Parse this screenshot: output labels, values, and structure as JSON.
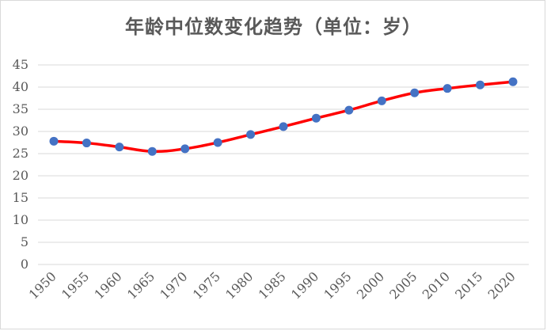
{
  "chart_data": {
    "type": "line",
    "title": "年龄中位数变化趋势（单位：岁）",
    "xlabel": "",
    "ylabel": "",
    "categories": [
      "1950",
      "1955",
      "1960",
      "1965",
      "1970",
      "1975",
      "1980",
      "1985",
      "1990",
      "1995",
      "2000",
      "2005",
      "2010",
      "2015",
      "2020"
    ],
    "series": [
      {
        "values": [
          27.8,
          27.4,
          26.5,
          25.5,
          26.1,
          27.5,
          29.3,
          31.1,
          33.0,
          34.8,
          36.9,
          38.7,
          39.7,
          40.5,
          41.2
        ]
      }
    ],
    "ylim": [
      0,
      45
    ],
    "yticks": [
      0,
      5,
      10,
      15,
      20,
      25,
      30,
      35,
      40,
      45
    ],
    "grid": true,
    "line_color": "#ff0000",
    "marker_color": "#4472c4",
    "legend": "none"
  }
}
